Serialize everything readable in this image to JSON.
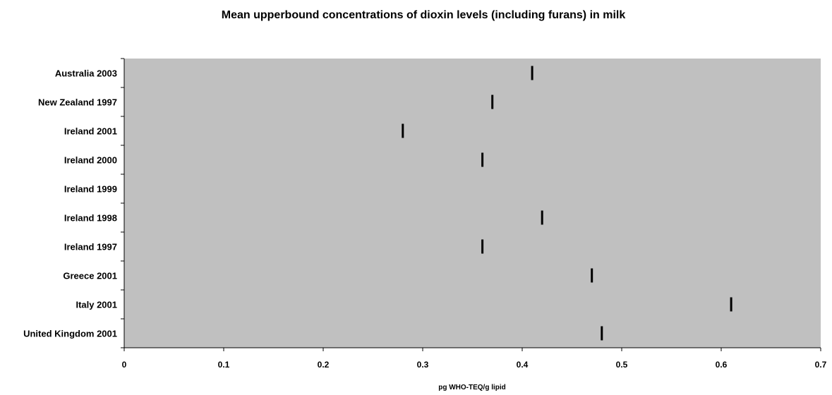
{
  "chart_data": {
    "type": "scatter",
    "orientation": "horizontal",
    "marker": "vertical-dash",
    "title": "Mean upperbound concentrations of dioxin levels (including furans) in milk",
    "xlabel": "pg WHO-TEQ/g lipid",
    "ylabel": "",
    "categories": [
      "Australia 2003",
      "New Zealand 1997",
      "Ireland 2001",
      "Ireland 2000",
      "Ireland 1999",
      "Ireland 1998",
      "Ireland 1997",
      "Greece 2001",
      "Italy 2001",
      "United Kingdom 2001"
    ],
    "values": [
      0.41,
      0.37,
      0.28,
      0.36,
      null,
      0.42,
      0.36,
      0.47,
      0.61,
      0.48
    ],
    "xlim": [
      0,
      0.7
    ],
    "xticks": [
      "0",
      "0.1",
      "0.2",
      "0.3",
      "0.4",
      "0.5",
      "0.6",
      "0.7"
    ],
    "grid": false,
    "legend": "none",
    "colors": {
      "plot_background": "#c0c0c0",
      "marker": "#000000",
      "axis": "#000000"
    }
  }
}
